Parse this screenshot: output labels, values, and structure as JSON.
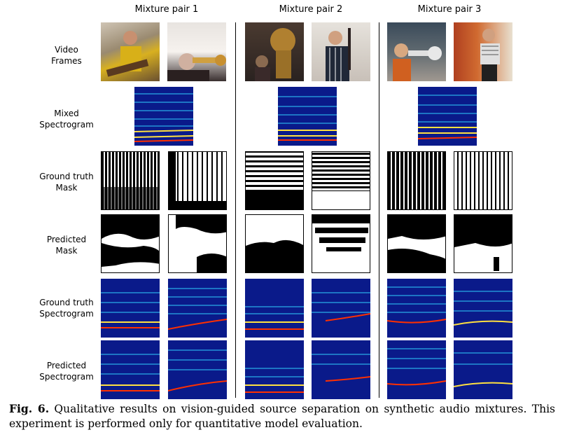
{
  "columns": [
    {
      "label": "Mixture pair 1"
    },
    {
      "label": "Mixture pair 2"
    },
    {
      "label": "Mixture pair 3"
    }
  ],
  "rows": [
    {
      "label": "Video\nFrames"
    },
    {
      "label": "Mixed\nSpectrogram"
    },
    {
      "label": "Ground truth\nMask"
    },
    {
      "label": "Predicted\nMask"
    },
    {
      "label": "Ground truth\nSpectrogram"
    },
    {
      "label": "Predicted\nSpectrogram"
    }
  ],
  "caption": {
    "prefix": "Fig. 6.",
    "text": " Qualitative results on vision-guided source separation on synthetic audio mixtures. This experiment is performed only for quantitative model evaluation."
  },
  "colors": {
    "spec_bg": "#0a1a8a",
    "spec_hot": "#ff3000",
    "spec_mid": "#30d0ff",
    "spec_warm": "#ffe040"
  }
}
